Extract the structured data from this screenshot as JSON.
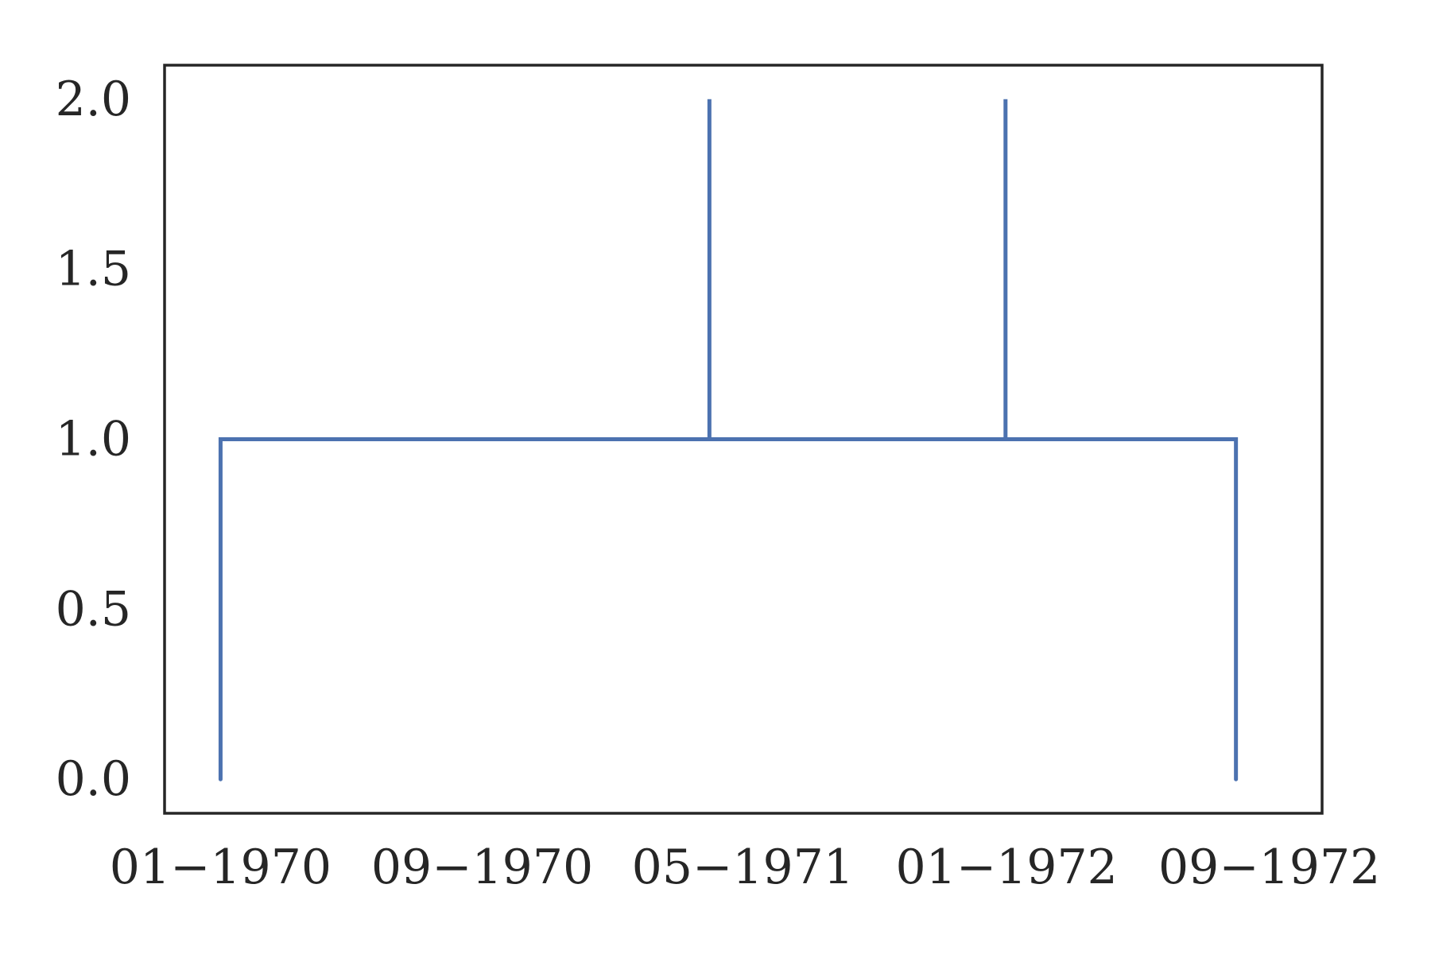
{
  "chart_data": {
    "type": "line",
    "title": "",
    "xlabel": "",
    "ylabel": "",
    "x_axis_type": "date",
    "x_tick_labels": [
      "01−1970",
      "09−1970",
      "05−1971",
      "01−1972",
      "09−1972"
    ],
    "x_tick_dates": [
      "1970-01-01",
      "1970-09-01",
      "1971-05-01",
      "1972-01-01",
      "1972-09-01"
    ],
    "xlim": [
      "1969-11-10",
      "1972-10-20"
    ],
    "ylim": [
      -0.1,
      2.1
    ],
    "y_ticks": [
      0.0,
      0.5,
      1.0,
      1.5,
      2.0
    ],
    "y_tick_labels": [
      "0.0",
      "0.5",
      "1.0",
      "1.5",
      "2.0"
    ],
    "grid": false,
    "legend": "none",
    "series": [
      {
        "color": "#4c72b0",
        "points": [
          {
            "x": "1970-01-01",
            "y": 0
          },
          {
            "x": "1970-01-01",
            "y": 1
          },
          {
            "x": "1971-03-31",
            "y": 1
          },
          {
            "x": "1971-03-31",
            "y": 2
          },
          {
            "x": "1971-03-31",
            "y": 1
          },
          {
            "x": "1971-12-31",
            "y": 1
          },
          {
            "x": "1971-12-31",
            "y": 2
          },
          {
            "x": "1971-12-31",
            "y": 1
          },
          {
            "x": "1972-08-01",
            "y": 1
          },
          {
            "x": "1972-08-01",
            "y": 0
          }
        ]
      }
    ]
  }
}
